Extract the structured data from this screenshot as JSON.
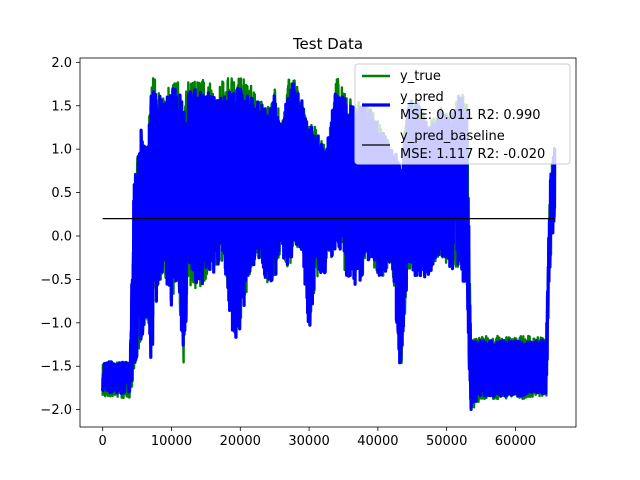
{
  "chart_data": {
    "type": "line",
    "title": "Test Data",
    "xlabel": "",
    "ylabel": "",
    "xlim": [
      -3300,
      68800
    ],
    "ylim": [
      -2.2,
      2.05
    ],
    "xticks": [
      0,
      10000,
      20000,
      30000,
      40000,
      50000,
      60000
    ],
    "xtick_labels": [
      "0",
      "10000",
      "20000",
      "30000",
      "40000",
      "50000",
      "60000"
    ],
    "yticks": [
      -2.0,
      -1.5,
      -1.0,
      -0.5,
      0.0,
      0.5,
      1.0,
      1.5,
      2.0
    ],
    "ytick_labels": [
      "−2.0",
      "−1.5",
      "−1.0",
      "−0.5",
      "0.0",
      "0.5",
      "1.0",
      "1.5",
      "2.0"
    ],
    "grid": false,
    "legend_position": "top-right",
    "series": [
      {
        "name": "y_true",
        "color": "#008000",
        "profile": [
          [
            0,
            -1.45,
            -1.85
          ],
          [
            4000,
            -1.45,
            -1.88
          ],
          [
            4500,
            0.6,
            -1.6
          ],
          [
            5500,
            1.25,
            -1.2
          ],
          [
            6500,
            1.0,
            -1.0
          ],
          [
            7000,
            1.82,
            -1.5
          ],
          [
            8000,
            1.82,
            -0.6
          ],
          [
            9000,
            1.6,
            -0.45
          ],
          [
            10000,
            1.82,
            -0.8
          ],
          [
            11000,
            1.82,
            -0.5
          ],
          [
            11700,
            1.5,
            -1.57
          ],
          [
            12500,
            1.82,
            -0.6
          ],
          [
            14000,
            1.82,
            -0.6
          ],
          [
            15500,
            1.82,
            -0.45
          ],
          [
            16500,
            1.6,
            -0.4
          ],
          [
            17500,
            1.82,
            -0.3
          ],
          [
            19000,
            1.82,
            -1.2
          ],
          [
            20000,
            1.82,
            -1.15
          ],
          [
            21000,
            1.82,
            -0.6
          ],
          [
            22500,
            1.6,
            -0.2
          ],
          [
            24000,
            1.5,
            -0.6
          ],
          [
            25000,
            1.75,
            -0.5
          ],
          [
            26000,
            1.25,
            -0.2
          ],
          [
            27000,
            1.85,
            -0.4
          ],
          [
            28000,
            1.85,
            -0.1
          ],
          [
            29000,
            1.6,
            -0.2
          ],
          [
            30000,
            1.3,
            -1.1
          ],
          [
            31000,
            1.25,
            -0.6
          ],
          [
            32500,
            1.0,
            -0.4
          ],
          [
            34000,
            1.85,
            -0.1
          ],
          [
            35500,
            1.6,
            -0.5
          ],
          [
            37000,
            1.55,
            -0.6
          ],
          [
            39000,
            1.5,
            -0.3
          ],
          [
            40500,
            1.3,
            -0.5
          ],
          [
            42000,
            1.0,
            -0.3
          ],
          [
            43300,
            0.9,
            -1.62
          ],
          [
            44500,
            1.6,
            -0.4
          ],
          [
            46000,
            1.6,
            -0.5
          ],
          [
            47500,
            1.3,
            -0.45
          ],
          [
            49000,
            1.5,
            -0.2
          ],
          [
            50500,
            1.4,
            -0.4
          ],
          [
            52000,
            1.7,
            -0.35
          ],
          [
            53000,
            1.5,
            -0.8
          ],
          [
            53500,
            -1.2,
            -2.02
          ],
          [
            55000,
            -1.15,
            -1.88
          ],
          [
            57000,
            -1.15,
            -1.88
          ],
          [
            59000,
            -1.15,
            -1.88
          ],
          [
            61000,
            -1.15,
            -1.88
          ],
          [
            62500,
            -1.15,
            -1.85
          ],
          [
            64500,
            -1.15,
            -1.85
          ],
          [
            65000,
            0.6,
            -0.4
          ],
          [
            65700,
            1.15,
            0.2
          ]
        ]
      },
      {
        "name": "y_pred",
        "label_line2": "MSE: 0.011 R2: 0.990",
        "color": "#0000ff",
        "profile": [
          [
            0,
            -1.45,
            -1.8
          ],
          [
            4000,
            -1.45,
            -1.82
          ],
          [
            4500,
            0.6,
            -1.6
          ],
          [
            5500,
            1.25,
            -1.2
          ],
          [
            6500,
            1.0,
            -1.0
          ],
          [
            7000,
            1.7,
            -1.5
          ],
          [
            8000,
            1.65,
            -0.6
          ],
          [
            9000,
            1.55,
            -0.45
          ],
          [
            10000,
            1.7,
            -0.8
          ],
          [
            11000,
            1.7,
            -0.5
          ],
          [
            11700,
            1.5,
            -1.5
          ],
          [
            12500,
            1.7,
            -0.6
          ],
          [
            14000,
            1.7,
            -0.6
          ],
          [
            15500,
            1.7,
            -0.45
          ],
          [
            16500,
            1.55,
            -0.4
          ],
          [
            17500,
            1.65,
            -0.3
          ],
          [
            19000,
            1.7,
            -1.2
          ],
          [
            20000,
            1.7,
            -1.15
          ],
          [
            21000,
            1.65,
            -0.6
          ],
          [
            22500,
            1.55,
            -0.2
          ],
          [
            24000,
            1.45,
            -0.6
          ],
          [
            25000,
            1.65,
            -0.5
          ],
          [
            26000,
            1.2,
            -0.2
          ],
          [
            27000,
            1.75,
            -0.4
          ],
          [
            28000,
            1.75,
            -0.1
          ],
          [
            29000,
            1.55,
            -0.2
          ],
          [
            30000,
            1.3,
            -1.1
          ],
          [
            31000,
            1.2,
            -0.6
          ],
          [
            32500,
            1.0,
            -0.4
          ],
          [
            34000,
            1.75,
            -0.1
          ],
          [
            35500,
            1.55,
            -0.5
          ],
          [
            37000,
            1.5,
            -0.6
          ],
          [
            39000,
            1.45,
            -0.3
          ],
          [
            40500,
            1.25,
            -0.5
          ],
          [
            42000,
            1.0,
            -0.3
          ],
          [
            43300,
            0.9,
            -1.62
          ],
          [
            44500,
            1.55,
            -0.4
          ],
          [
            46000,
            1.55,
            -0.5
          ],
          [
            47500,
            1.25,
            -0.45
          ],
          [
            49000,
            1.45,
            -0.2
          ],
          [
            50500,
            1.35,
            -0.4
          ],
          [
            52000,
            1.65,
            -0.35
          ],
          [
            53000,
            1.45,
            -0.8
          ],
          [
            53500,
            -1.2,
            -2.02
          ],
          [
            55000,
            -1.2,
            -1.85
          ],
          [
            57000,
            -1.2,
            -1.85
          ],
          [
            59000,
            -1.2,
            -1.85
          ],
          [
            61000,
            -1.2,
            -1.85
          ],
          [
            62500,
            -1.2,
            -1.82
          ],
          [
            64500,
            -1.2,
            -1.82
          ],
          [
            65000,
            0.6,
            -0.4
          ],
          [
            65700,
            1.1,
            0.2
          ]
        ]
      },
      {
        "name": "y_pred_baseline",
        "label_line2": "MSE: 1.117 R2: -0.020",
        "color": "#000000",
        "x": [
          0,
          65700
        ],
        "y": [
          0.2,
          0.2
        ]
      }
    ]
  }
}
